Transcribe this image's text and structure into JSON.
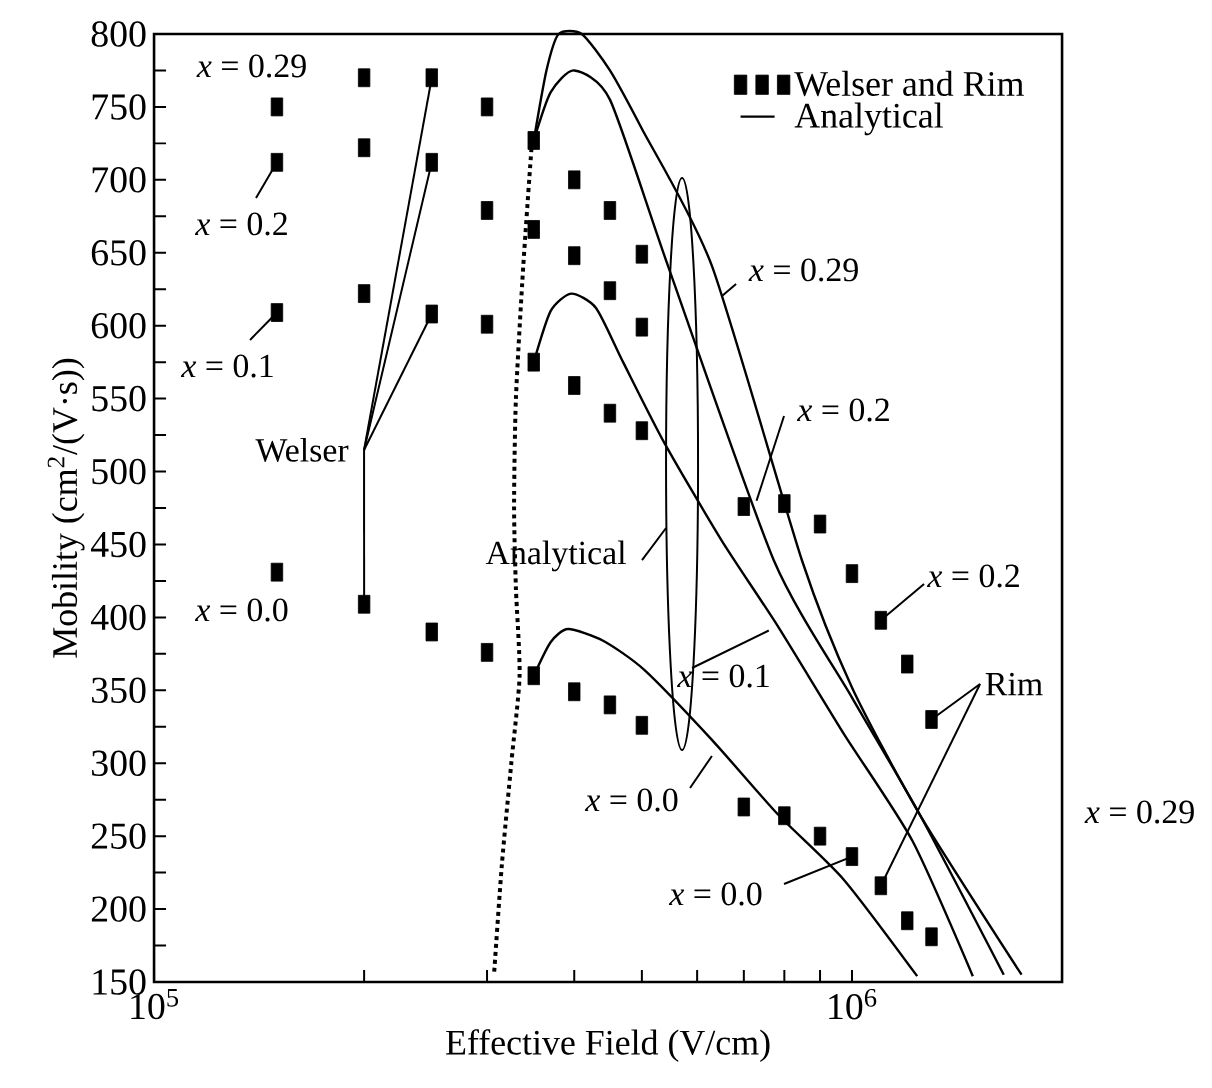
{
  "chart_data": {
    "type": "scatter",
    "xlabel": "Effective Field (V/cm)",
    "ylabel": "Mobility (cm$^{2}$/(V·s))",
    "log": "x",
    "xlim": [
      100000,
      2000000
    ],
    "ylim": [
      150,
      800
    ],
    "xticks": [
      {
        "value": 100000,
        "label": "10$^{5}$"
      },
      {
        "value": 200000,
        "label": null
      },
      {
        "value": 300000,
        "label": null
      },
      {
        "value": 400000,
        "label": null
      },
      {
        "value": 500000,
        "label": null
      },
      {
        "value": 600000,
        "label": null
      },
      {
        "value": 700000,
        "label": null
      },
      {
        "value": 800000,
        "label": null
      },
      {
        "value": 900000,
        "label": null
      },
      {
        "value": 1000000,
        "label": "10$^{6}$"
      }
    ],
    "yticks": [
      150,
      {
        "value": 175,
        "label": null
      },
      200,
      {
        "value": 225,
        "label": null
      },
      250,
      {
        "value": 275,
        "label": null
      },
      300,
      {
        "value": 325,
        "label": null
      },
      350,
      {
        "value": 375,
        "label": null
      },
      400,
      {
        "value": 425,
        "label": null
      },
      450,
      {
        "value": 475,
        "label": null
      },
      500,
      {
        "value": 525,
        "label": null
      },
      550,
      {
        "value": 575,
        "label": null
      },
      600,
      {
        "value": 625,
        "label": null
      },
      650,
      {
        "value": 675,
        "label": null
      },
      700,
      {
        "value": 725,
        "label": null
      },
      750,
      {
        "value": 775,
        "label": null
      },
      800
    ],
    "grid": false,
    "legend": "top right",
    "marker": "square",
    "series": [
      {
        "name": "Welser and Rim",
        "color": "#000000",
        "x": [
          150000,
          200000,
          250000,
          300000,
          350000,
          400000,
          450000,
          500000,
          150000,
          200000,
          250000,
          300000,
          350000,
          400000,
          450000,
          500000,
          150000,
          200000,
          250000,
          300000,
          350000,
          400000,
          450000,
          500000,
          150000,
          200000,
          250000,
          300000,
          350000,
          400000,
          450000,
          500000,
          700000,
          800000,
          900000,
          1000000,
          1100000,
          1200000,
          1300000,
          700000,
          800000,
          900000,
          1000000,
          1100000,
          1200000,
          1300000
        ],
        "values": [
          750,
          770,
          770,
          750,
          727,
          700,
          679,
          649,
          712,
          722,
          712,
          679,
          666,
          648,
          624,
          599,
          609,
          622,
          608,
          601,
          575,
          559,
          540,
          528,
          431,
          409,
          390,
          376,
          360,
          349,
          340,
          326,
          476,
          478,
          464,
          430,
          398,
          368,
          330,
          270,
          264,
          250,
          236,
          216,
          192,
          181
        ]
      },
      {
        "name": "Analytical",
        "type": "line",
        "color": "#000000",
        "marker": "none",
        "line_style": "solid",
        "x": [
          350000,
          365000,
          380000,
          410000,
          450000,
          500000,
          630000,
          848000,
          1000000,
          1250000,
          1750000
        ],
        "values": [
          727,
          775,
          800,
          800,
          775,
          735,
          641,
          439,
          352,
          265,
          155
        ]
      },
      {
        "type": "line",
        "color": "#000000",
        "marker": "none",
        "line_style": "solid",
        "x": [
          350000,
          370000,
          400000,
          450000,
          545000,
          773000,
          1000000,
          1250000,
          1650000
        ],
        "values": [
          727,
          760,
          775,
          755,
          641,
          439,
          345,
          265,
          155
        ]
      },
      {
        "type": "line",
        "color": "#000000",
        "marker": "none",
        "line_style": "solid",
        "x": [
          350000,
          370000,
          396000,
          430000,
          470000,
          538000,
          650000,
          783000,
          974000,
          1220000,
          1490000
        ],
        "values": [
          575,
          610,
          622,
          612,
          575,
          520,
          453,
          394,
          320,
          247,
          154
        ]
      },
      {
        "type": "line",
        "color": "#000000",
        "marker": "none",
        "line_style": "solid",
        "x": [
          350000,
          370000,
          392000,
          440000,
          504000,
          630000,
          783000,
          974000,
          1240000
        ],
        "values": [
          360,
          383,
          392,
          384,
          364,
          316,
          265,
          220,
          154
        ]
      },
      {
        "type": "line",
        "color": "#000000",
        "marker": "none",
        "line_style": "dotted",
        "x": [
          348000,
          338000,
          330000,
          328000,
          330000,
          334000,
          325000,
          315000,
          307000
        ],
        "values": [
          727,
          640,
          550,
          476,
          420,
          360,
          300,
          230,
          155
        ]
      }
    ],
    "annotations": [
      "*x* = 0.29",
      {
        "text": "*x* = 0.2",
        "x": 150000,
        "y": 712
      },
      {
        "text": "*x* = 0.1",
        "x": 150000,
        "y": 609
      },
      "*x* = 0.0",
      {
        "text": "Welser",
        "x": 250000,
        "y": 770
      },
      "Analytical",
      {
        "text": "*x* = 0.29",
        "x": 650000,
        "y": 620
      },
      {
        "text": "*x* = 0.2",
        "x": 730000,
        "y": 480
      },
      {
        "text": "*x* = 0.2",
        "x": 1100000,
        "y": 398
      },
      {
        "text": "Rim",
        "x": 1300000,
        "y": 330
      },
      {
        "text": "*x* = 0.1",
        "x": 760000,
        "y": 391
      },
      {
        "text": "*x* = 0.0",
        "x": 630000,
        "y": 305
      },
      {
        "text": "*x* = 0.0",
        "x": 1000000,
        "y": 236
      },
      "*x* = 0.29"
    ]
  }
}
